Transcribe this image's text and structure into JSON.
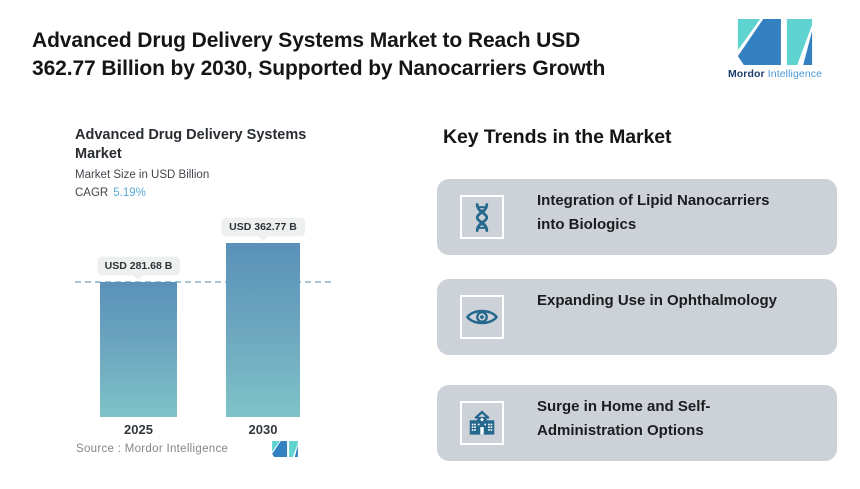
{
  "header": {
    "headline_line1": "Advanced Drug Delivery Systems Market to Reach USD",
    "headline_line2": "362.77 Billion by 2030, Supported by Nanocarriers Growth",
    "brand": {
      "name_bold": "Mordor",
      "name_light": "Intelligence"
    }
  },
  "chart": {
    "title_line1": "Advanced Drug Delivery Systems",
    "title_line2": "Market",
    "subtitle": "Market Size in USD Billion",
    "cagr_label": "CAGR",
    "cagr_value": "5.19%",
    "source_label": "Source : Mordor Intelligence",
    "colors": {
      "bar_top": "#5a91ba",
      "bar_bottom": "#7fc3c8",
      "dash_line": "#a8c5d8",
      "cagr_value": "#58a7d6",
      "callout_bg": "#edf0ef",
      "card_bg": "#cdd2d9",
      "icon": "#25688d",
      "logo_blue": "#3381c0",
      "logo_teal": "#5fd3d0"
    }
  },
  "chart_data": {
    "type": "bar",
    "title": "Advanced Drug Delivery Systems Market",
    "ylabel": "Market Size in USD Billion",
    "categories": [
      "2025",
      "2030"
    ],
    "values": [
      281.68,
      362.77
    ],
    "value_labels": [
      "USD 281.68 B",
      "USD 362.77 B"
    ],
    "cagr": "5.19%",
    "reference_line": 281.68,
    "legend": "none",
    "grid": "off",
    "source": "Mordor Intelligence"
  },
  "trends": {
    "heading": "Key Trends in the Market",
    "cards": [
      {
        "icon": "dna-icon",
        "line1": "Integration of Lipid Nanocarriers",
        "line2": "into Biologics"
      },
      {
        "icon": "eye-icon",
        "line1": "Expanding Use in Ophthalmology",
        "line2": ""
      },
      {
        "icon": "hospital-icon",
        "line1": "Surge in Home and Self-",
        "line2": "Administration Options"
      }
    ]
  }
}
